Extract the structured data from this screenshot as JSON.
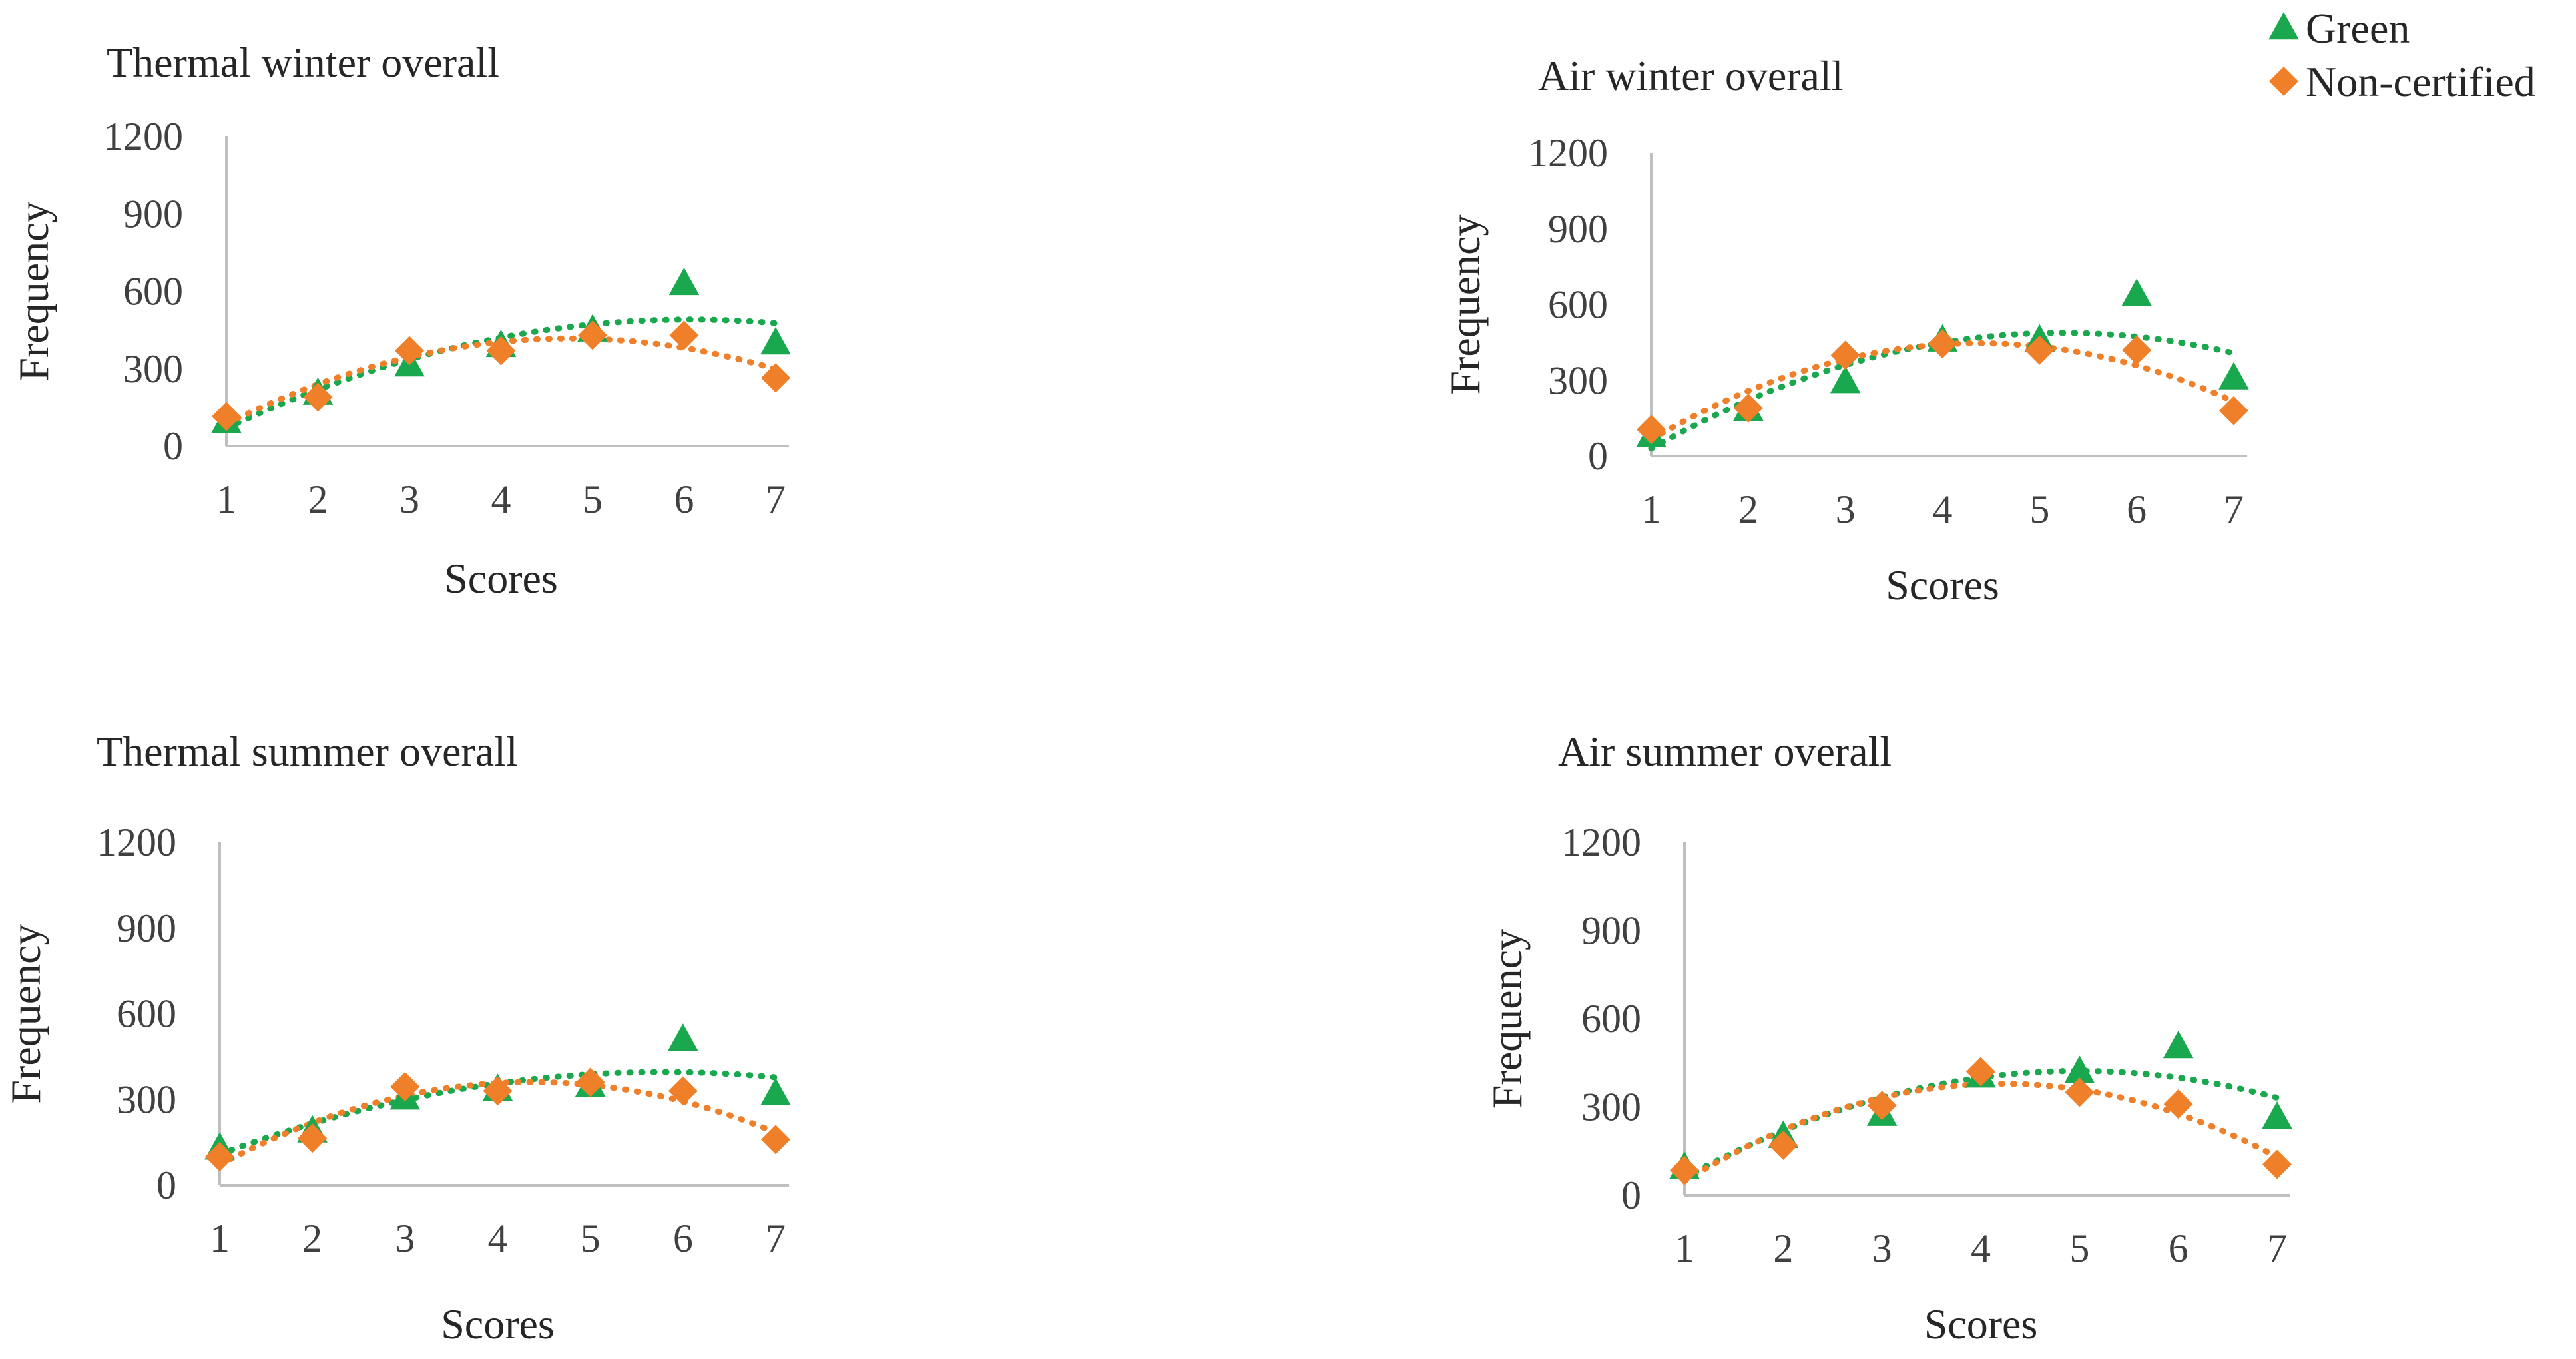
{
  "legend": {
    "items": [
      {
        "label": "Green",
        "color": "#1aa84f",
        "marker": "triangle"
      },
      {
        "label": "Non-certified",
        "color": "#f07f2a",
        "marker": "diamond"
      }
    ]
  },
  "chart_data": [
    {
      "type": "scatter",
      "title": "Thermal winter overall",
      "xlabel": "Scores",
      "ylabel": "Frequency",
      "x": [
        1,
        2,
        3,
        4,
        5,
        6,
        7
      ],
      "ylim": [
        0,
        1200
      ],
      "yticks": [
        0,
        300,
        600,
        900,
        1200
      ],
      "trendline": "polynomial (dotted)",
      "series": [
        {
          "name": "Green",
          "values": [
            95,
            205,
            315,
            390,
            450,
            630,
            400
          ]
        },
        {
          "name": "Non-certified",
          "values": [
            115,
            190,
            370,
            370,
            430,
            430,
            265
          ]
        }
      ]
    },
    {
      "type": "scatter",
      "title": "Air winter overall",
      "xlabel": "Scores",
      "ylabel": "Frequency",
      "x": [
        1,
        2,
        3,
        4,
        5,
        6,
        7
      ],
      "ylim": [
        0,
        1200
      ],
      "yticks": [
        0,
        300,
        600,
        900,
        1200
      ],
      "trendline": "polynomial (dotted)",
      "series": [
        {
          "name": "Green",
          "values": [
            80,
            185,
            295,
            460,
            460,
            640,
            310
          ]
        },
        {
          "name": "Non-certified",
          "values": [
            105,
            190,
            400,
            445,
            420,
            420,
            180
          ]
        }
      ]
    },
    {
      "type": "scatter",
      "title": "Thermal summer overall",
      "xlabel": "Scores",
      "ylabel": "Frequency",
      "x": [
        1,
        2,
        3,
        4,
        5,
        6,
        7
      ],
      "ylim": [
        0,
        1200
      ],
      "yticks": [
        0,
        300,
        600,
        900,
        1200
      ],
      "trendline": "polynomial (dotted)",
      "series": [
        {
          "name": "Green",
          "values": [
            130,
            190,
            305,
            335,
            350,
            510,
            320
          ]
        },
        {
          "name": "Non-certified",
          "values": [
            100,
            165,
            345,
            330,
            360,
            330,
            160
          ]
        }
      ]
    },
    {
      "type": "scatter",
      "title": "Air summer overall",
      "xlabel": "Scores",
      "ylabel": "Frequency",
      "x": [
        1,
        2,
        3,
        4,
        5,
        6,
        7
      ],
      "ylim": [
        0,
        1200
      ],
      "yticks": [
        0,
        300,
        600,
        900,
        1200
      ],
      "trendline": "polynomial (dotted)",
      "series": [
        {
          "name": "Green",
          "values": [
            95,
            200,
            275,
            405,
            420,
            505,
            265
          ]
        },
        {
          "name": "Non-certified",
          "values": [
            85,
            170,
            305,
            420,
            350,
            310,
            105
          ]
        }
      ]
    }
  ]
}
